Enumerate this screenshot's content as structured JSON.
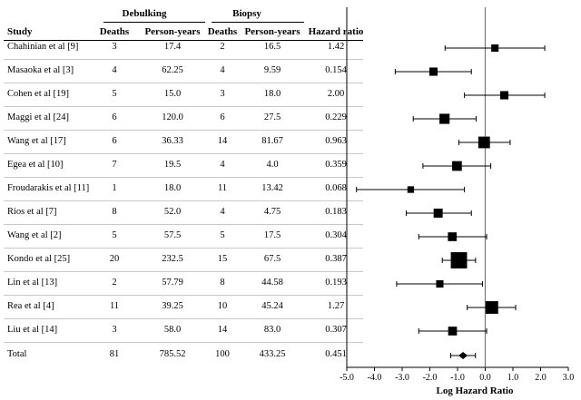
{
  "table": {
    "group_headers": {
      "debulking": "Debulking",
      "biopsy": "Biopsy"
    },
    "columns": [
      "Study",
      "Deaths",
      "Person-years",
      "Deaths",
      "Person-years",
      "Hazard ratio"
    ],
    "rows": [
      {
        "study": "Chahinian et al [9]",
        "deb_deaths": "3",
        "deb_py": "17.4",
        "bio_deaths": "2",
        "bio_py": "16.5",
        "hr": "1.42"
      },
      {
        "study": "Masaoka et al [3]",
        "deb_deaths": "4",
        "deb_py": "62.25",
        "bio_deaths": "4",
        "bio_py": "9.59",
        "hr": "0.154"
      },
      {
        "study": "Cohen et al [19]",
        "deb_deaths": "5",
        "deb_py": "15.0",
        "bio_deaths": "3",
        "bio_py": "18.0",
        "hr": "2.00"
      },
      {
        "study": "Maggi et al [24]",
        "deb_deaths": "6",
        "deb_py": "120.0",
        "bio_deaths": "6",
        "bio_py": "27.5",
        "hr": "0.229"
      },
      {
        "study": "Wang et al [17]",
        "deb_deaths": "6",
        "deb_py": "36.33",
        "bio_deaths": "14",
        "bio_py": "81.67",
        "hr": "0.963"
      },
      {
        "study": "Egea et al [10]",
        "deb_deaths": "7",
        "deb_py": "19.5",
        "bio_deaths": "4",
        "bio_py": "4.0",
        "hr": "0.359"
      },
      {
        "study": "Froudarakis et al [11]",
        "deb_deaths": "1",
        "deb_py": "18.0",
        "bio_deaths": "11",
        "bio_py": "13.42",
        "hr": "0.068"
      },
      {
        "study": "Rios et al [7]",
        "deb_deaths": "8",
        "deb_py": "52.0",
        "bio_deaths": "4",
        "bio_py": "4.75",
        "hr": "0.183"
      },
      {
        "study": "Wang et al [2]",
        "deb_deaths": "5",
        "deb_py": "57.5",
        "bio_deaths": "5",
        "bio_py": "17.5",
        "hr": "0.304"
      },
      {
        "study": "Kondo et al [25]",
        "deb_deaths": "20",
        "deb_py": "232.5",
        "bio_deaths": "15",
        "bio_py": "67.5",
        "hr": "0.387"
      },
      {
        "study": "Lin et al [13]",
        "deb_deaths": "2",
        "deb_py": "57.79",
        "bio_deaths": "8",
        "bio_py": "44.58",
        "hr": "0.193"
      },
      {
        "study": "Rea et al [4]",
        "deb_deaths": "11",
        "deb_py": "39.25",
        "bio_deaths": "10",
        "bio_py": "45.24",
        "hr": "1.27"
      },
      {
        "study": "Liu et al [14]",
        "deb_deaths": "3",
        "deb_py": "58.0",
        "bio_deaths": "14",
        "bio_py": "83.0",
        "hr": "0.307"
      },
      {
        "study": "Total",
        "deb_deaths": "81",
        "deb_py": "785.52",
        "bio_deaths": "100",
        "bio_py": "433.25",
        "hr": "0.451"
      }
    ]
  },
  "chart_data": {
    "type": "forest",
    "xlabel": "Log Hazard Ratio",
    "xlim": [
      -5.0,
      3.0
    ],
    "xticks": [
      "-5.0",
      "-4.0",
      "-3.0",
      "-2.0",
      "-1.0",
      "0.0",
      "1.0",
      "2.0",
      "3.0"
    ],
    "reference_line": 0,
    "studies": [
      {
        "label": "Chahinian et al [9]",
        "est": 0.35,
        "lo": -1.45,
        "hi": 2.15,
        "weight": 0.7
      },
      {
        "label": "Masaoka et al [3]",
        "est": -1.87,
        "lo": -3.25,
        "hi": -0.5,
        "weight": 1.0
      },
      {
        "label": "Cohen et al [19]",
        "est": 0.69,
        "lo": -0.75,
        "hi": 2.15,
        "weight": 1.0
      },
      {
        "label": "Maggi et al [24]",
        "est": -1.47,
        "lo": -2.6,
        "hi": -0.33,
        "weight": 1.8
      },
      {
        "label": "Wang et al [17]",
        "est": -0.04,
        "lo": -0.95,
        "hi": 0.9,
        "weight": 2.6
      },
      {
        "label": "Egea et al [10]",
        "est": -1.02,
        "lo": -2.25,
        "hi": 0.2,
        "weight": 1.6
      },
      {
        "label": "Froudarakis et al [11]",
        "est": -2.69,
        "lo": -4.65,
        "hi": -0.75,
        "weight": 0.5
      },
      {
        "label": "Rios et al [7]",
        "est": -1.7,
        "lo": -2.85,
        "hi": -0.5,
        "weight": 1.3
      },
      {
        "label": "Wang et al [2]",
        "est": -1.19,
        "lo": -2.4,
        "hi": 0.05,
        "weight": 1.2
      },
      {
        "label": "Kondo et al [25]",
        "est": -0.95,
        "lo": -1.55,
        "hi": -0.35,
        "weight": 6.0
      },
      {
        "label": "Lin et al [13]",
        "est": -1.64,
        "lo": -3.2,
        "hi": -0.1,
        "weight": 0.7
      },
      {
        "label": "Rea et al [4]",
        "est": 0.24,
        "lo": -0.65,
        "hi": 1.1,
        "weight": 3.2
      },
      {
        "label": "Liu et al [14]",
        "est": -1.18,
        "lo": -2.4,
        "hi": 0.05,
        "weight": 1.2
      }
    ],
    "pooled": {
      "label": "Total",
      "est": -0.8,
      "lo": -1.05,
      "hi": -0.55
    }
  }
}
